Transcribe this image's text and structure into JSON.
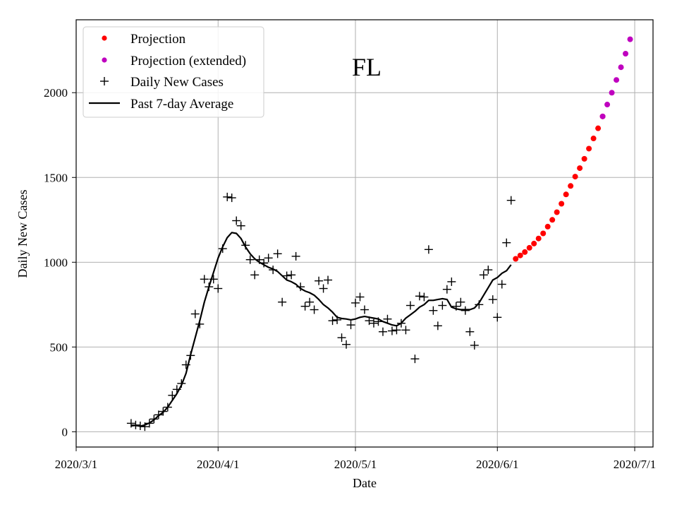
{
  "chart_data": {
    "type": "scatter",
    "title": "FL",
    "xlabel": "Date",
    "ylabel": "Daily New Cases",
    "x_axis": {
      "type": "date",
      "start": "2020-03-01",
      "range_days": [
        0,
        126
      ],
      "ticks": [
        {
          "day": 0,
          "label": "2020/3/1"
        },
        {
          "day": 31,
          "label": "2020/4/1"
        },
        {
          "day": 61,
          "label": "2020/5/1"
        },
        {
          "day": 92,
          "label": "2020/6/1"
        },
        {
          "day": 122,
          "label": "2020/7/1"
        }
      ]
    },
    "y_axis": {
      "ylim": [
        -90,
        2430
      ],
      "ticks": [
        {
          "value": 0,
          "label": "0"
        },
        {
          "value": 500,
          "label": "500"
        },
        {
          "value": 1000,
          "label": "1000"
        },
        {
          "value": 1500,
          "label": "1500"
        },
        {
          "value": 2000,
          "label": "2000"
        }
      ]
    },
    "grid": true,
    "legend_position": "top-left",
    "legend": [
      {
        "key": "projection",
        "label": "Projection",
        "marker": "dot",
        "color": "#ff0000"
      },
      {
        "key": "projection_extended",
        "label": "Projection (extended)",
        "marker": "dot",
        "color": "#bf00bf"
      },
      {
        "key": "daily",
        "label": "Daily New Cases",
        "marker": "plus",
        "color": "#000000"
      },
      {
        "key": "avg",
        "label": "Past 7-day Average",
        "marker": "line",
        "color": "#000000"
      }
    ],
    "series": [
      {
        "name": "Daily New Cases",
        "kind": "plus",
        "color": "#000000",
        "x_days": [
          12,
          13,
          14,
          15,
          16,
          17,
          18,
          19,
          20,
          21,
          22,
          23,
          24,
          25,
          26,
          27,
          28,
          29,
          30,
          31,
          32,
          33,
          34,
          35,
          36,
          37,
          38,
          39,
          40,
          41,
          42,
          43,
          44,
          45,
          46,
          47,
          48,
          49,
          50,
          51,
          52,
          53,
          54,
          55,
          56,
          57,
          58,
          59,
          60,
          61,
          62,
          63,
          64,
          65,
          66,
          67,
          68,
          69,
          70,
          71,
          72,
          73,
          74,
          75,
          76,
          77,
          78,
          79,
          80,
          81,
          82,
          83,
          84,
          85,
          86,
          87,
          88,
          89,
          90,
          91,
          92,
          93,
          94,
          95
        ],
        "values": [
          50,
          40,
          35,
          30,
          50,
          75,
          100,
          120,
          145,
          215,
          250,
          285,
          395,
          450,
          695,
          635,
          900,
          855,
          900,
          845,
          1080,
          1385,
          1380,
          1245,
          1215,
          1100,
          1015,
          925,
          1015,
          995,
          1025,
          955,
          1050,
          765,
          920,
          925,
          1035,
          855,
          740,
          765,
          720,
          890,
          845,
          895,
          655,
          660,
          555,
          515,
          630,
          760,
          795,
          720,
          655,
          640,
          650,
          590,
          665,
          595,
          600,
          640,
          600,
          745,
          430,
          800,
          795,
          1075,
          715,
          625,
          745,
          840,
          885,
          740,
          765,
          715,
          590,
          510,
          750,
          925,
          955,
          780,
          675,
          870,
          1115,
          1365
        ]
      },
      {
        "name": "Past 7-day Average",
        "kind": "line",
        "color": "#000000",
        "x_days": [
          12,
          13,
          14,
          15,
          16,
          17,
          18,
          19,
          20,
          21,
          22,
          23,
          24,
          25,
          26,
          27,
          28,
          29,
          30,
          31,
          32,
          33,
          34,
          35,
          36,
          37,
          38,
          39,
          40,
          41,
          42,
          43,
          44,
          45,
          46,
          47,
          48,
          49,
          50,
          51,
          52,
          53,
          54,
          55,
          56,
          57,
          58,
          59,
          60,
          61,
          62,
          63,
          64,
          65,
          66,
          67,
          68,
          69,
          70,
          71,
          72,
          73,
          74,
          75,
          76,
          77,
          78,
          79,
          80,
          81,
          82,
          83,
          84,
          85,
          86,
          87,
          88,
          89,
          90,
          91,
          92,
          93,
          94,
          95
        ],
        "values": [
          35,
          38,
          33,
          40,
          52,
          70,
          95,
          115,
          145,
          185,
          225,
          275,
          345,
          455,
          555,
          655,
          765,
          855,
          940,
          1025,
          1090,
          1145,
          1175,
          1170,
          1140,
          1090,
          1050,
          1020,
          1000,
          985,
          970,
          960,
          945,
          920,
          895,
          885,
          870,
          845,
          830,
          820,
          805,
          780,
          750,
          730,
          705,
          675,
          668,
          665,
          660,
          665,
          675,
          680,
          675,
          670,
          665,
          650,
          640,
          630,
          625,
          640,
          670,
          690,
          710,
          735,
          750,
          775,
          775,
          780,
          785,
          780,
          735,
          725,
          720,
          720,
          720,
          730,
          760,
          805,
          850,
          895,
          910,
          935,
          950,
          985
        ]
      },
      {
        "name": "Projection",
        "kind": "dot",
        "color": "#ff0000",
        "x_days": [
          96,
          97,
          98,
          99,
          100,
          101,
          102,
          103,
          104,
          105,
          106,
          107,
          108,
          109,
          110,
          111,
          112,
          113,
          114,
          115
        ],
        "values": [
          1020,
          1040,
          1060,
          1085,
          1110,
          1140,
          1170,
          1210,
          1250,
          1295,
          1345,
          1400,
          1450,
          1505,
          1555,
          1610,
          1670,
          1730,
          1790,
          1860
        ]
      },
      {
        "name": "Projection (extended)",
        "kind": "dot",
        "color": "#bf00bf",
        "x_days": [
          115,
          116,
          117,
          118,
          119,
          120,
          121
        ],
        "values": [
          1860,
          1930,
          2000,
          2075,
          2150,
          2230,
          2315
        ]
      }
    ]
  }
}
